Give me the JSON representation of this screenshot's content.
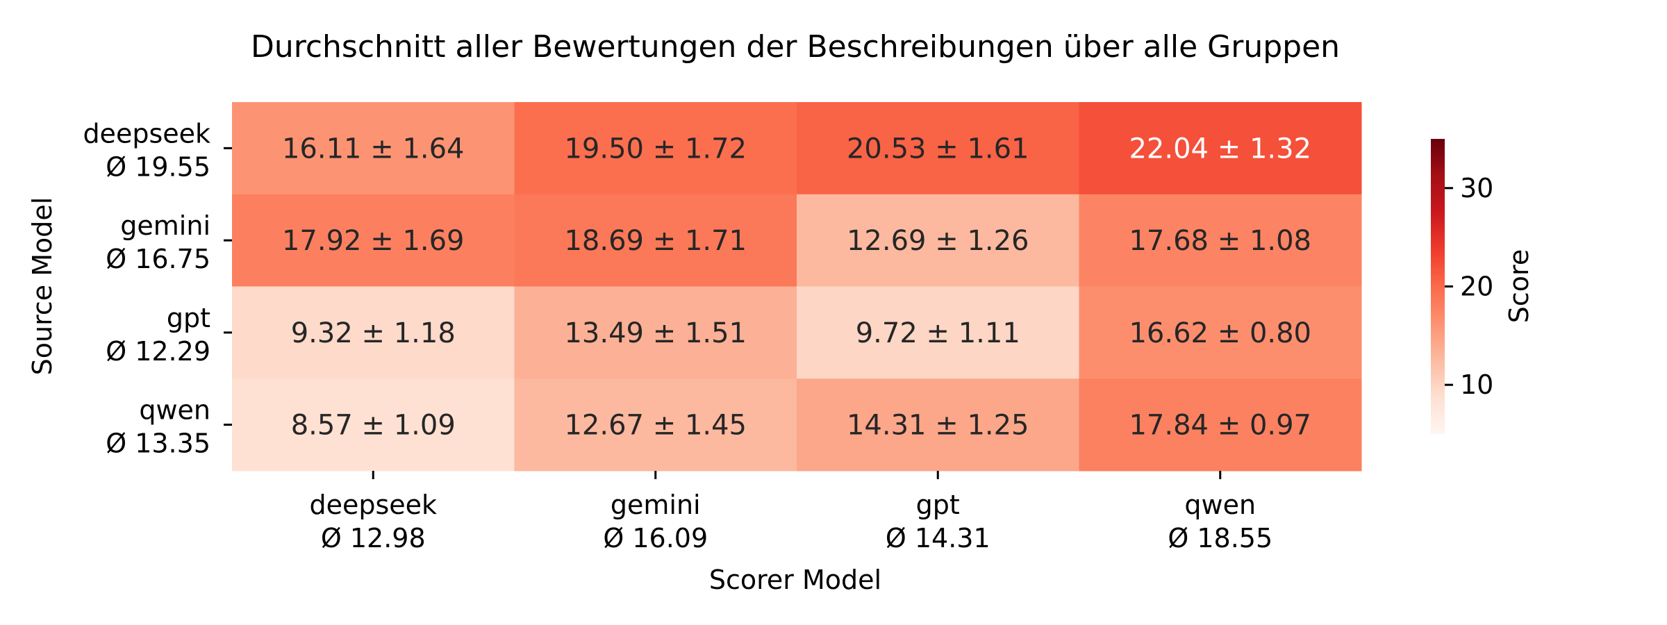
{
  "chart_data": {
    "type": "heatmap",
    "title": "Durchschnitt aller Bewertungen der Beschreibungen über alle Gruppen",
    "xlabel": "Scorer Model",
    "ylabel": "Source Model",
    "columns": [
      {
        "name": "deepseek",
        "mean_label": "Ø 12.98"
      },
      {
        "name": "gemini",
        "mean_label": "Ø 16.09"
      },
      {
        "name": "gpt",
        "mean_label": "Ø 14.31"
      },
      {
        "name": "qwen",
        "mean_label": "Ø 18.55"
      }
    ],
    "rows": [
      {
        "name": "deepseek",
        "mean_label": "Ø 19.55"
      },
      {
        "name": "gemini",
        "mean_label": "Ø 16.75"
      },
      {
        "name": "gpt",
        "mean_label": "Ø 12.29"
      },
      {
        "name": "qwen",
        "mean_label": "Ø 13.35"
      }
    ],
    "values": [
      [
        16.11,
        19.5,
        20.53,
        22.04
      ],
      [
        17.92,
        18.69,
        12.69,
        17.68
      ],
      [
        9.32,
        13.49,
        9.72,
        16.62
      ],
      [
        8.57,
        12.67,
        14.31,
        17.84
      ]
    ],
    "errors": [
      [
        1.64,
        1.72,
        1.61,
        1.32
      ],
      [
        1.69,
        1.71,
        1.26,
        1.08
      ],
      [
        1.18,
        1.51,
        1.11,
        0.8
      ],
      [
        1.09,
        1.45,
        1.25,
        0.97
      ]
    ],
    "cell_labels": [
      [
        "16.11 ± 1.64",
        "19.50 ± 1.72",
        "20.53 ± 1.61",
        "22.04 ± 1.32"
      ],
      [
        "17.92 ± 1.69",
        "18.69 ± 1.71",
        "12.69 ± 1.26",
        "17.68 ± 1.08"
      ],
      [
        "9.32 ± 1.18",
        "13.49 ± 1.51",
        "9.72 ± 1.11",
        "16.62 ± 0.80"
      ],
      [
        "8.57 ± 1.09",
        "12.67 ± 1.45",
        "14.31 ± 1.25",
        "17.84 ± 0.97"
      ]
    ],
    "colorbar": {
      "label": "Score",
      "vmin": 5,
      "vmax": 35,
      "ticks": [
        10,
        20,
        30
      ],
      "colormap": "Reds",
      "colors": [
        "#fff5f0",
        "#fee0d2",
        "#fcbba1",
        "#fc9272",
        "#fb6a4a",
        "#ef3b2c",
        "#cb181d",
        "#a50f15",
        "#67000d"
      ]
    }
  }
}
